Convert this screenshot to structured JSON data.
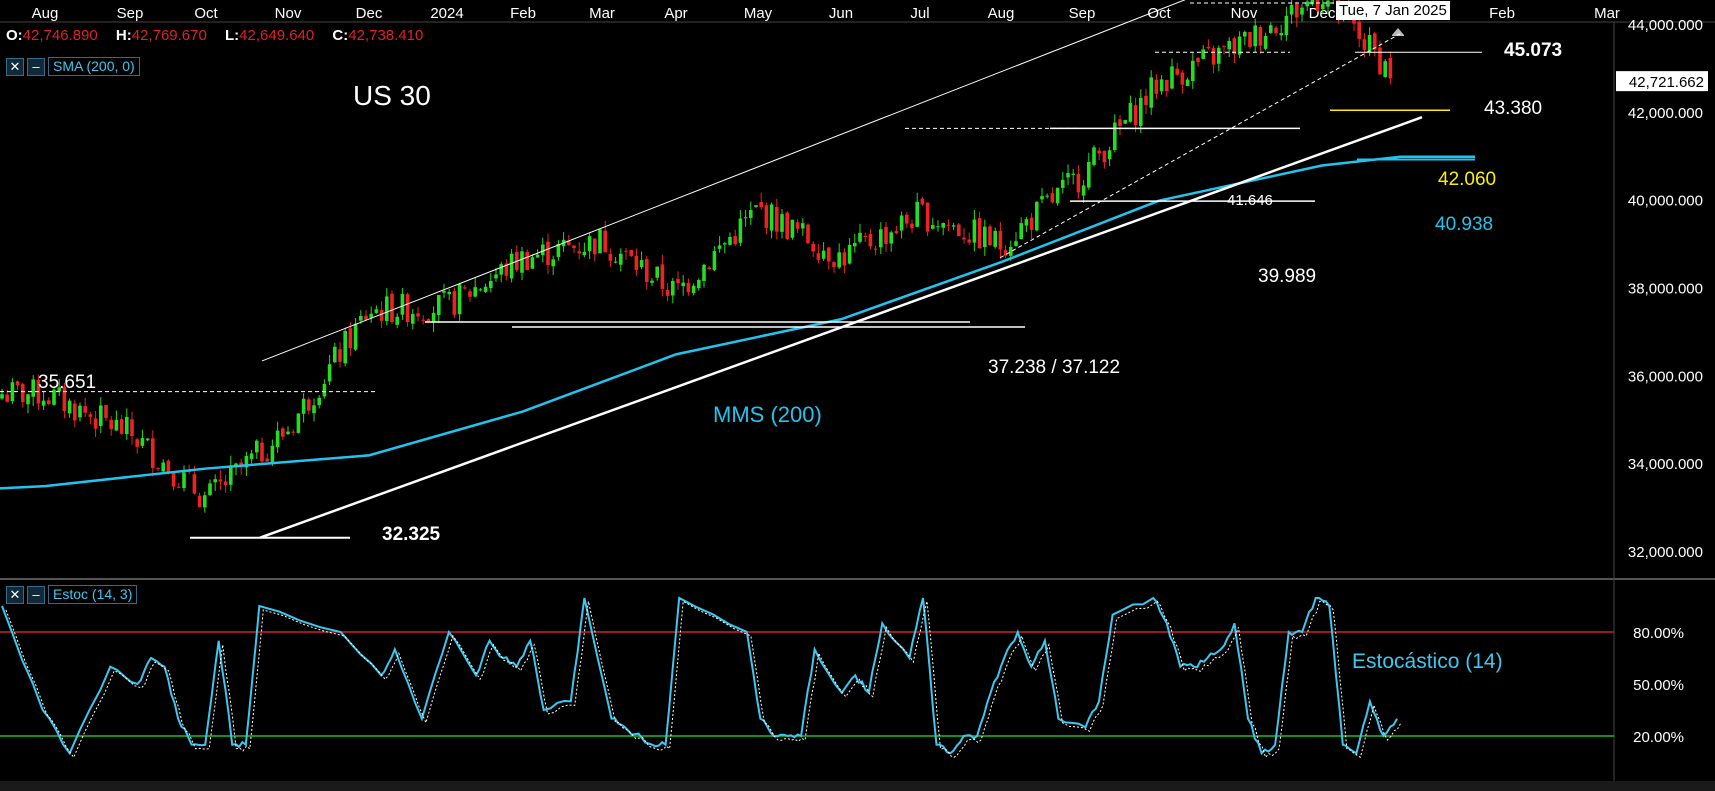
{
  "instrument": {
    "title": "US 30"
  },
  "ohlc": {
    "o_label": "O:",
    "o": "42,746.890",
    "h_label": "H:",
    "h": "42,769.670",
    "l_label": "L:",
    "l": "42,649.640",
    "c_label": "C:",
    "c": "42,738.410"
  },
  "indicators": {
    "sma_tag": "SMA (200, 0)",
    "stoch_tag": "Estoc (14, 3)",
    "close_icon": "close-icon",
    "collapse_icon": "minimize-icon"
  },
  "crosshair": {
    "date_label": "Tue, 7 Jan 2025"
  },
  "colors": {
    "background": "#000000",
    "up_candle": "#22dd22",
    "down_candle": "#ee2222",
    "sma": "#22c4ee",
    "stoch_k": "#3cc8f0",
    "stoch_d": "#ffffff",
    "overbought_line": "#cc2222",
    "oversold_line": "#22bb22",
    "support_highlight": "#ffee00"
  },
  "chart_data": [
    {
      "type": "candlestick",
      "title": "US 30",
      "x_tick_labels": [
        "Aug",
        "Sep",
        "Oct",
        "Nov",
        "Dec",
        "2024",
        "Feb",
        "Mar",
        "Apr",
        "May",
        "Jun",
        "Jul",
        "Aug",
        "Sep",
        "Oct",
        "Nov",
        "Dec",
        "Jan",
        "Feb",
        "Mar"
      ],
      "y_tick_labels": [
        "32,000.000",
        "34,000.000",
        "36,000.000",
        "38,000.000",
        "40,000.000",
        "42,000.000",
        "44,000.000"
      ],
      "ylim": [
        31300,
        45800
      ],
      "last_price_label": "42,721.662",
      "last_price": 42721.662,
      "price_path": [
        [
          "Aug 2023",
          35600
        ],
        [
          "Sep 2023",
          34700
        ],
        [
          "Oct 2023",
          33200
        ],
        [
          "Nov 2023",
          34800
        ],
        [
          "Dec 2023",
          37500
        ],
        [
          "2024",
          37600
        ],
        [
          "Feb 2024",
          38700
        ],
        [
          "Mar 2024",
          39100
        ],
        [
          "Apr 2024",
          37900
        ],
        [
          "May 2024",
          39800
        ],
        [
          "Jun 2024",
          38700
        ],
        [
          "Jul 2024",
          39700
        ],
        [
          "Aug 2024",
          39000
        ],
        [
          "Sep 2024",
          40600
        ],
        [
          "Oct 2024",
          42700
        ],
        [
          "Nov 2024",
          43600
        ],
        [
          "Dec 2024",
          44700
        ],
        [
          "Jan 2025",
          42700
        ]
      ],
      "sma_path": [
        [
          "Aug 2023",
          33500
        ],
        [
          "Oct 2023",
          33900
        ],
        [
          "Dec 2023",
          34200
        ],
        [
          "Feb 2024",
          35200
        ],
        [
          "Apr 2024",
          36500
        ],
        [
          "Jun 2024",
          37300
        ],
        [
          "Aug 2024",
          38600
        ],
        [
          "Oct 2024",
          40000
        ],
        [
          "Dec 2024",
          40800
        ],
        [
          "Jan 2025",
          41000
        ]
      ],
      "annotations": [
        {
          "text": "35.651",
          "value": 35651
        },
        {
          "text": "32.325",
          "value": 32325
        },
        {
          "text": "37.238 / 37.122",
          "value": 37180
        },
        {
          "text": "MMS (200)"
        },
        {
          "text": "39.989",
          "value": 39989
        },
        {
          "text": "41.646",
          "value": 41646
        },
        {
          "text": "42.060",
          "value": 42060
        },
        {
          "text": "40.938",
          "value": 40938
        },
        {
          "text": "43.380",
          "value": 43380
        },
        {
          "text": "45.073",
          "value": 45073
        }
      ]
    },
    {
      "type": "line",
      "title": "Estoc (14, 3)",
      "series_label": "Estocástico (14)",
      "y_tick_labels": [
        "80.00%",
        "50.00%",
        "20.00%"
      ],
      "ylim": [
        0,
        115
      ],
      "levels": [
        80,
        20
      ],
      "k_path": [
        [
          0,
          95
        ],
        [
          3,
          35
        ],
        [
          5,
          10
        ],
        [
          8,
          60
        ],
        [
          10,
          50
        ],
        [
          11,
          65
        ],
        [
          12,
          60
        ],
        [
          13,
          30
        ],
        [
          14,
          15
        ],
        [
          15,
          15
        ],
        [
          16,
          75
        ],
        [
          17,
          15
        ],
        [
          18,
          15
        ],
        [
          19,
          95
        ],
        [
          25,
          80
        ],
        [
          28,
          55
        ],
        [
          29,
          70
        ],
        [
          31,
          30
        ],
        [
          33,
          80
        ],
        [
          35,
          55
        ],
        [
          36,
          75
        ],
        [
          37,
          65
        ],
        [
          38,
          60
        ],
        [
          39,
          75
        ],
        [
          40,
          35
        ],
        [
          42,
          40
        ],
        [
          43,
          100
        ],
        [
          45,
          30
        ],
        [
          46,
          25
        ],
        [
          48,
          15
        ],
        [
          49,
          15
        ],
        [
          50,
          100
        ],
        [
          55,
          80
        ],
        [
          56,
          30
        ],
        [
          57,
          20
        ],
        [
          58,
          20
        ],
        [
          59,
          20
        ],
        [
          60,
          70
        ],
        [
          62,
          45
        ],
        [
          63,
          55
        ],
        [
          64,
          45
        ],
        [
          65,
          85
        ],
        [
          67,
          65
        ],
        [
          68,
          100
        ],
        [
          69,
          15
        ],
        [
          70,
          10
        ],
        [
          71,
          20
        ],
        [
          72,
          20
        ],
        [
          73,
          45
        ],
        [
          74,
          65
        ],
        [
          75,
          80
        ],
        [
          76,
          60
        ],
        [
          77,
          75
        ],
        [
          78,
          30
        ],
        [
          80,
          25
        ],
        [
          81,
          40
        ],
        [
          82,
          90
        ],
        [
          85,
          100
        ],
        [
          86,
          85
        ],
        [
          87,
          60
        ],
        [
          88,
          60
        ],
        [
          89,
          65
        ],
        [
          90,
          70
        ],
        [
          91,
          85
        ],
        [
          92,
          30
        ],
        [
          93,
          10
        ],
        [
          94,
          15
        ],
        [
          95,
          80
        ],
        [
          96,
          80
        ],
        [
          97,
          100
        ],
        [
          98,
          95
        ],
        [
          99,
          15
        ],
        [
          100,
          10
        ],
        [
          101,
          40
        ],
        [
          102,
          20
        ],
        [
          103,
          30
        ]
      ]
    }
  ]
}
